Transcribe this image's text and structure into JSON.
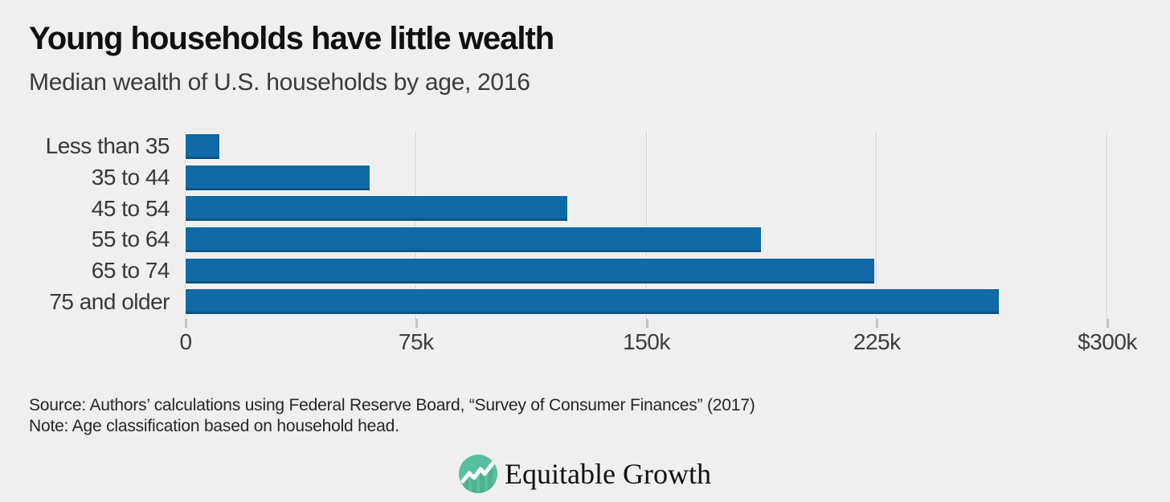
{
  "title": "Young households have little wealth",
  "subtitle": "Median wealth of U.S. households by age, 2016",
  "chart_data": {
    "type": "bar",
    "orientation": "horizontal",
    "categories": [
      "Less than 35",
      "35 to 44",
      "45 to 54",
      "55 to 64",
      "65 to 74",
      "75 and older"
    ],
    "values": [
      11100,
      59800,
      124200,
      187300,
      224100,
      264800
    ],
    "unit": "US dollars",
    "xlim": [
      0,
      300000
    ],
    "x_ticks": [
      {
        "value": 0,
        "label": "0"
      },
      {
        "value": 75000,
        "label": "75k"
      },
      {
        "value": 150000,
        "label": "150k"
      },
      {
        "value": 225000,
        "label": "225k"
      },
      {
        "value": 300000,
        "label": "$300k"
      }
    ],
    "grid": "vertical",
    "legend": "none",
    "bar_color": "#0f6aa6",
    "background_color": "#efefef"
  },
  "footer": {
    "source": "Source: Authors’ calculations using Federal Reserve Board, “Survey of Consumer Finances” (2017)",
    "note": "Note: Age classification based on household head."
  },
  "logo": {
    "text": "Equitable Growth",
    "icon": "trend-line-circle-icon",
    "icon_color": "#57bfa1"
  }
}
